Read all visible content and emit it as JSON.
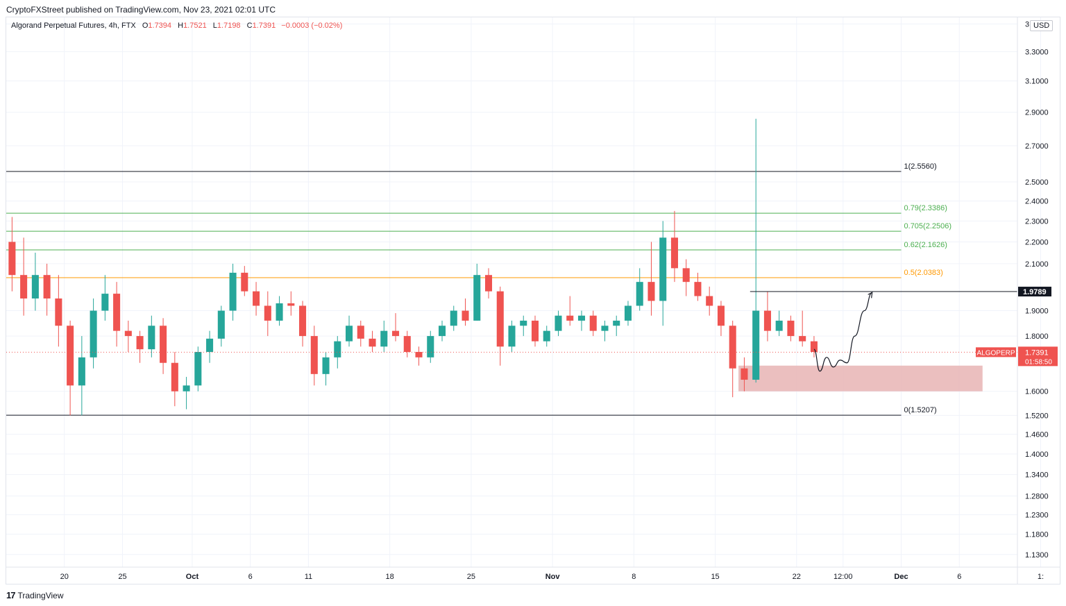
{
  "header": {
    "publish_line": "CryptoFXStreet published on TradingView.com, Nov 23, 2021 02:01 UTC"
  },
  "legend": {
    "symbol_line": "Algorand Perpetual Futures, 4h, FTX",
    "o_label": "O",
    "o_value": "1.7394",
    "h_label": "H",
    "h_value": "1.7521",
    "l_label": "L",
    "l_value": "1.7198",
    "c_label": "C",
    "c_value": "1.7391",
    "change": "−0.0003 (−0.02%)"
  },
  "currency_badge": "USD",
  "footer": {
    "brand": "TradingView",
    "brand_mark": "17"
  },
  "colors": {
    "up": "#26a69a",
    "down": "#ef5350",
    "fib_edge": "#131722",
    "fib_green": "#4caf50",
    "fib_orange": "#ff9800",
    "zone_fill": "#e8b4b4",
    "last_price_bg": "#ef5350",
    "resistance": "#131722"
  },
  "chart_data": {
    "type": "candlestick",
    "instrument": "ALGOPERP",
    "timeframe": "4h",
    "y_ticks": [
      {
        "value": 3.5,
        "label": "3."
      },
      {
        "value": 3.3,
        "label": "3.3000"
      },
      {
        "value": 3.1,
        "label": "3.1000"
      },
      {
        "value": 2.9,
        "label": "2.9000"
      },
      {
        "value": 2.7,
        "label": "2.7000"
      },
      {
        "value": 2.5,
        "label": "2.5000"
      },
      {
        "value": 2.4,
        "label": "2.4000"
      },
      {
        "value": 2.3,
        "label": "2.3000"
      },
      {
        "value": 2.2,
        "label": "2.2000"
      },
      {
        "value": 2.1,
        "label": "2.1000"
      },
      {
        "value": 1.9,
        "label": "1.9000"
      },
      {
        "value": 1.8,
        "label": "1.8000"
      },
      {
        "value": 1.6,
        "label": "1.6000"
      },
      {
        "value": 1.52,
        "label": "1.5200"
      },
      {
        "value": 1.46,
        "label": "1.4600"
      },
      {
        "value": 1.4,
        "label": "1.4000"
      },
      {
        "value": 1.34,
        "label": "1.3400"
      },
      {
        "value": 1.28,
        "label": "1.2800"
      },
      {
        "value": 1.23,
        "label": "1.2300"
      },
      {
        "value": 1.18,
        "label": "1.1800"
      },
      {
        "value": 1.13,
        "label": "1.1300"
      }
    ],
    "y_range": [
      1.1,
      3.55
    ],
    "y_scale": "log",
    "x_range": [
      "2021-09-15",
      "2021-12-11"
    ],
    "x_ticks": [
      {
        "date": "2021-09-20",
        "label": "20",
        "bold": false
      },
      {
        "date": "2021-09-25",
        "label": "25",
        "bold": false
      },
      {
        "date": "2021-10-01",
        "label": "Oct",
        "bold": true
      },
      {
        "date": "2021-10-06",
        "label": "6",
        "bold": false
      },
      {
        "date": "2021-10-11",
        "label": "11",
        "bold": false
      },
      {
        "date": "2021-10-18",
        "label": "18",
        "bold": false
      },
      {
        "date": "2021-10-25",
        "label": "25",
        "bold": false
      },
      {
        "date": "2021-11-01",
        "label": "Nov",
        "bold": true
      },
      {
        "date": "2021-11-08",
        "label": "8",
        "bold": false
      },
      {
        "date": "2021-11-15",
        "label": "15",
        "bold": false
      },
      {
        "date": "2021-11-22",
        "label": "22",
        "bold": false
      },
      {
        "date": "2021-11-26",
        "label": "12:00",
        "bold": false
      },
      {
        "date": "2021-12-01",
        "label": "Dec",
        "bold": true
      },
      {
        "date": "2021-12-06",
        "label": "6",
        "bold": false
      },
      {
        "date": "2021-12-13",
        "label": "1:",
        "bold": false
      }
    ],
    "fib_levels": [
      {
        "ratio": "1",
        "value": 2.556,
        "label": "1(2.5560)",
        "color": "#131722"
      },
      {
        "ratio": "0.79",
        "value": 2.3386,
        "label": "0.79(2.3386)",
        "color": "#4caf50"
      },
      {
        "ratio": "0.705",
        "value": 2.2506,
        "label": "0.705(2.2506)",
        "color": "#4caf50"
      },
      {
        "ratio": "0.62",
        "value": 2.1626,
        "label": "0.62(2.1626)",
        "color": "#4caf50"
      },
      {
        "ratio": "0.5",
        "value": 2.0383,
        "label": "0.5(2.0383)",
        "color": "#ff9800"
      },
      {
        "ratio": "0",
        "value": 1.5207,
        "label": "0(1.5207)",
        "color": "#131722"
      }
    ],
    "fib_start_date": "2021-09-15",
    "fib_end_date": "2021-12-01",
    "resistance": {
      "value": 1.9789,
      "label": "1.9789",
      "start_date": "2021-11-18"
    },
    "demand_zone": {
      "top": 1.69,
      "bottom": 1.6,
      "start_date": "2021-11-17",
      "end_date": "2021-12-08"
    },
    "last_price": {
      "value": 1.7391,
      "label": "1.7391",
      "countdown": "01:58:50",
      "ticker": "ALGOPERP"
    },
    "projection_path": [
      [
        "2021-11-23 12:00",
        1.75
      ],
      [
        "2021-11-24 00:00",
        1.67
      ],
      [
        "2021-11-24 14:00",
        1.72
      ],
      [
        "2021-11-25 04:00",
        1.685
      ],
      [
        "2021-11-25 18:00",
        1.71
      ],
      [
        "2021-11-26 08:00",
        1.7
      ],
      [
        "2021-11-27 00:00",
        1.8
      ],
      [
        "2021-11-27 20:00",
        1.9
      ],
      [
        "2021-11-28 12:00",
        1.975
      ]
    ],
    "candles": [
      [
        "2021-09-15",
        2.2,
        2.32,
        1.98,
        2.05
      ],
      [
        "2021-09-16",
        2.05,
        2.22,
        1.88,
        1.95
      ],
      [
        "2021-09-17",
        1.95,
        2.15,
        1.9,
        2.05
      ],
      [
        "2021-09-18",
        2.05,
        2.1,
        1.88,
        1.95
      ],
      [
        "2021-09-19",
        1.95,
        2.05,
        1.76,
        1.84
      ],
      [
        "2021-09-20",
        1.84,
        1.86,
        1.52,
        1.62
      ],
      [
        "2021-09-21",
        1.62,
        1.8,
        1.52,
        1.72
      ],
      [
        "2021-09-22",
        1.72,
        1.95,
        1.68,
        1.9
      ],
      [
        "2021-09-23",
        1.9,
        2.05,
        1.86,
        1.97
      ],
      [
        "2021-09-24",
        1.97,
        2.02,
        1.76,
        1.82
      ],
      [
        "2021-09-25",
        1.82,
        1.86,
        1.74,
        1.8
      ],
      [
        "2021-09-26",
        1.8,
        1.82,
        1.7,
        1.75
      ],
      [
        "2021-09-27",
        1.75,
        1.88,
        1.72,
        1.84
      ],
      [
        "2021-09-28",
        1.84,
        1.87,
        1.66,
        1.7
      ],
      [
        "2021-09-29",
        1.7,
        1.74,
        1.55,
        1.6
      ],
      [
        "2021-09-30",
        1.6,
        1.65,
        1.54,
        1.62
      ],
      [
        "2021-10-01",
        1.62,
        1.76,
        1.6,
        1.74
      ],
      [
        "2021-10-02",
        1.74,
        1.82,
        1.7,
        1.79
      ],
      [
        "2021-10-03",
        1.79,
        1.92,
        1.76,
        1.9
      ],
      [
        "2021-10-04",
        1.9,
        2.1,
        1.86,
        2.06
      ],
      [
        "2021-10-05",
        2.06,
        2.09,
        1.96,
        1.98
      ],
      [
        "2021-10-06",
        1.98,
        2.02,
        1.88,
        1.92
      ],
      [
        "2021-10-07",
        1.92,
        1.98,
        1.8,
        1.86
      ],
      [
        "2021-10-08",
        1.86,
        1.96,
        1.84,
        1.93
      ],
      [
        "2021-10-09",
        1.93,
        1.98,
        1.88,
        1.92
      ],
      [
        "2021-10-10",
        1.92,
        1.94,
        1.76,
        1.8
      ],
      [
        "2021-10-11",
        1.8,
        1.84,
        1.62,
        1.66
      ],
      [
        "2021-10-12",
        1.66,
        1.74,
        1.62,
        1.72
      ],
      [
        "2021-10-13",
        1.72,
        1.8,
        1.68,
        1.78
      ],
      [
        "2021-10-14",
        1.78,
        1.88,
        1.76,
        1.84
      ],
      [
        "2021-10-15",
        1.84,
        1.86,
        1.76,
        1.79
      ],
      [
        "2021-10-16",
        1.79,
        1.82,
        1.74,
        1.76
      ],
      [
        "2021-10-17",
        1.76,
        1.86,
        1.74,
        1.82
      ],
      [
        "2021-10-18",
        1.82,
        1.89,
        1.78,
        1.8
      ],
      [
        "2021-10-19",
        1.8,
        1.82,
        1.72,
        1.74
      ],
      [
        "2021-10-20",
        1.74,
        1.76,
        1.69,
        1.72
      ],
      [
        "2021-10-21",
        1.72,
        1.82,
        1.7,
        1.8
      ],
      [
        "2021-10-22",
        1.8,
        1.86,
        1.78,
        1.84
      ],
      [
        "2021-10-23",
        1.84,
        1.92,
        1.82,
        1.9
      ],
      [
        "2021-10-24",
        1.9,
        1.95,
        1.84,
        1.86
      ],
      [
        "2021-10-25",
        1.86,
        2.1,
        1.86,
        2.05
      ],
      [
        "2021-10-26",
        2.05,
        2.08,
        1.95,
        1.98
      ],
      [
        "2021-10-27",
        1.98,
        2.0,
        1.69,
        1.76
      ],
      [
        "2021-10-28",
        1.76,
        1.86,
        1.74,
        1.84
      ],
      [
        "2021-10-29",
        1.84,
        1.88,
        1.8,
        1.86
      ],
      [
        "2021-10-30",
        1.86,
        1.88,
        1.76,
        1.78
      ],
      [
        "2021-10-31",
        1.78,
        1.84,
        1.76,
        1.82
      ],
      [
        "2021-11-01",
        1.82,
        1.9,
        1.8,
        1.88
      ],
      [
        "2021-11-02",
        1.88,
        1.96,
        1.84,
        1.86
      ],
      [
        "2021-11-03",
        1.86,
        1.9,
        1.82,
        1.88
      ],
      [
        "2021-11-04",
        1.88,
        1.9,
        1.8,
        1.82
      ],
      [
        "2021-11-05",
        1.82,
        1.86,
        1.78,
        1.84
      ],
      [
        "2021-11-06",
        1.84,
        1.88,
        1.8,
        1.86
      ],
      [
        "2021-11-07",
        1.86,
        1.94,
        1.84,
        1.92
      ],
      [
        "2021-11-08",
        1.92,
        2.08,
        1.9,
        2.02
      ],
      [
        "2021-11-09",
        2.02,
        2.2,
        1.88,
        1.94
      ],
      [
        "2021-11-10",
        1.94,
        2.3,
        1.84,
        2.22
      ],
      [
        "2021-11-11",
        2.22,
        2.35,
        2.02,
        2.08
      ],
      [
        "2021-11-12",
        2.08,
        2.12,
        1.96,
        2.02
      ],
      [
        "2021-11-13",
        2.02,
        2.06,
        1.94,
        1.96
      ],
      [
        "2021-11-14",
        1.96,
        2.0,
        1.88,
        1.92
      ],
      [
        "2021-11-15",
        1.92,
        1.94,
        1.8,
        1.84
      ],
      [
        "2021-11-16",
        1.84,
        1.86,
        1.58,
        1.68
      ],
      [
        "2021-11-17",
        1.68,
        1.72,
        1.6,
        1.64
      ],
      [
        "2021-11-18",
        1.64,
        2.86,
        1.63,
        1.9
      ],
      [
        "2021-11-19",
        1.9,
        1.98,
        1.78,
        1.82
      ],
      [
        "2021-11-20",
        1.82,
        1.9,
        1.8,
        1.86
      ],
      [
        "2021-11-21",
        1.86,
        1.88,
        1.78,
        1.8
      ],
      [
        "2021-11-22",
        1.8,
        1.9,
        1.76,
        1.78
      ],
      [
        "2021-11-23",
        1.78,
        1.8,
        1.72,
        1.74
      ]
    ]
  }
}
